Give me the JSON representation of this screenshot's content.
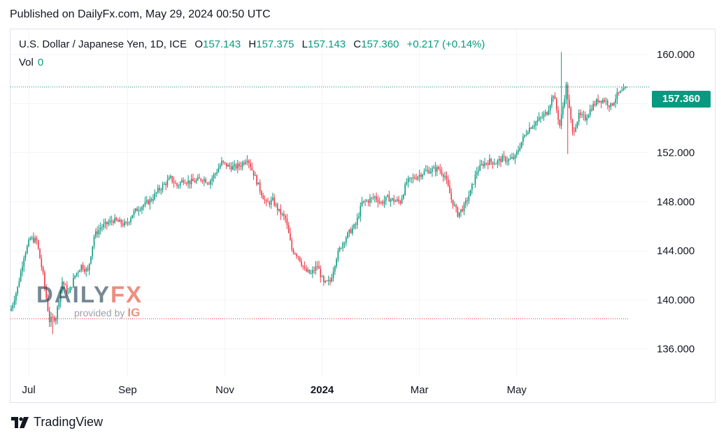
{
  "published": "Published on DailyFx.com, May 29, 2024 00:50 UTC",
  "legend": {
    "title": "U.S. Dollar / Japanese Yen, 1D, ICE",
    "open_label": "O",
    "open": "157.143",
    "high_label": "H",
    "high": "157.375",
    "low_label": "L",
    "low": "157.143",
    "close_label": "C",
    "close": "157.360",
    "change": "+0.217 (+0.14%)"
  },
  "volume": {
    "label": "Vol",
    "value": "0"
  },
  "last_price_tag": "157.360",
  "watermark": {
    "daily": "DAILY",
    "fx": "FX",
    "provided_by": "provided by",
    "ig": "IG"
  },
  "footer": {
    "brand": "TradingView"
  },
  "colors": {
    "up": "#089981",
    "down": "#f23645",
    "grid": "#f0f3fa",
    "text": "#131722"
  },
  "chart_data": {
    "type": "candlestick",
    "title": "U.S. Dollar / Japanese Yen, 1D, ICE",
    "xlabel": "",
    "ylabel": "",
    "ylim": [
      134.0,
      162.4
    ],
    "y_ticks": [
      136,
      140,
      144,
      148,
      152,
      156,
      160
    ],
    "y_tick_labels": [
      "136.000",
      "140.000",
      "144.000",
      "148.000",
      "152.000",
      "156.000",
      "160.000"
    ],
    "x_ticks": [
      {
        "label": "Jul",
        "day": 11,
        "bold": false
      },
      {
        "label": "Sep",
        "day": 73,
        "bold": false
      },
      {
        "label": "Nov",
        "day": 134,
        "bold": false
      },
      {
        "label": "2024",
        "day": 195,
        "bold": true
      },
      {
        "label": "Mar",
        "day": 256,
        "bold": false
      },
      {
        "label": "May",
        "day": 317,
        "bold": false
      }
    ],
    "reference_lines": [
      {
        "name": "last-close",
        "value": 157.36,
        "color": "#089981"
      },
      {
        "name": "range-low",
        "value": 138.45,
        "color": "#f23645"
      }
    ],
    "series_close": [
      [
        0,
        139.3
      ],
      [
        4,
        141.0
      ],
      [
        8,
        143.6
      ],
      [
        12,
        145.0
      ],
      [
        16,
        144.8
      ],
      [
        20,
        142.0
      ],
      [
        24,
        138.3
      ],
      [
        28,
        138.6
      ],
      [
        32,
        141.5
      ],
      [
        36,
        140.5
      ],
      [
        40,
        142.0
      ],
      [
        44,
        142.8
      ],
      [
        48,
        142.3
      ],
      [
        52,
        145.2
      ],
      [
        56,
        145.9
      ],
      [
        60,
        146.2
      ],
      [
        64,
        146.5
      ],
      [
        68,
        146.3
      ],
      [
        72,
        146.1
      ],
      [
        76,
        147.0
      ],
      [
        80,
        147.5
      ],
      [
        84,
        147.8
      ],
      [
        88,
        148.2
      ],
      [
        92,
        148.9
      ],
      [
        96,
        149.4
      ],
      [
        100,
        149.9
      ],
      [
        104,
        149.3
      ],
      [
        108,
        149.8
      ],
      [
        112,
        149.6
      ],
      [
        116,
        149.7
      ],
      [
        120,
        149.9
      ],
      [
        124,
        149.6
      ],
      [
        128,
        150.3
      ],
      [
        132,
        151.2
      ],
      [
        136,
        150.9
      ],
      [
        140,
        150.8
      ],
      [
        144,
        151.0
      ],
      [
        148,
        151.6
      ],
      [
        152,
        150.3
      ],
      [
        156,
        149.0
      ],
      [
        160,
        147.8
      ],
      [
        164,
        148.1
      ],
      [
        168,
        147.2
      ],
      [
        172,
        146.6
      ],
      [
        176,
        144.1
      ],
      [
        180,
        143.6
      ],
      [
        184,
        142.4
      ],
      [
        188,
        142.1
      ],
      [
        192,
        142.8
      ],
      [
        196,
        141.3
      ],
      [
        200,
        141.5
      ],
      [
        204,
        143.5
      ],
      [
        208,
        144.7
      ],
      [
        212,
        145.5
      ],
      [
        216,
        146.1
      ],
      [
        220,
        147.9
      ],
      [
        224,
        148.1
      ],
      [
        228,
        148.4
      ],
      [
        232,
        147.9
      ],
      [
        236,
        148.3
      ],
      [
        240,
        148.1
      ],
      [
        244,
        148.0
      ],
      [
        248,
        149.6
      ],
      [
        252,
        149.9
      ],
      [
        256,
        150.2
      ],
      [
        260,
        150.5
      ],
      [
        264,
        150.6
      ],
      [
        268,
        150.7
      ],
      [
        272,
        150.1
      ],
      [
        276,
        148.2
      ],
      [
        280,
        147.0
      ],
      [
        284,
        147.6
      ],
      [
        288,
        148.8
      ],
      [
        292,
        150.5
      ],
      [
        296,
        151.1
      ],
      [
        300,
        151.3
      ],
      [
        304,
        151.2
      ],
      [
        308,
        151.5
      ],
      [
        312,
        151.4
      ],
      [
        316,
        151.6
      ],
      [
        320,
        152.9
      ],
      [
        324,
        153.9
      ],
      [
        328,
        154.4
      ],
      [
        332,
        154.8
      ],
      [
        336,
        155.3
      ],
      [
        340,
        156.8
      ],
      [
        344,
        154.2
      ],
      [
        348,
        157.4
      ],
      [
        352,
        153.6
      ],
      [
        356,
        155.0
      ],
      [
        360,
        154.8
      ],
      [
        364,
        155.7
      ],
      [
        368,
        156.3
      ],
      [
        372,
        156.3
      ],
      [
        376,
        155.8
      ],
      [
        380,
        156.7
      ],
      [
        384,
        157.0
      ],
      [
        386,
        157.36
      ]
    ]
  }
}
